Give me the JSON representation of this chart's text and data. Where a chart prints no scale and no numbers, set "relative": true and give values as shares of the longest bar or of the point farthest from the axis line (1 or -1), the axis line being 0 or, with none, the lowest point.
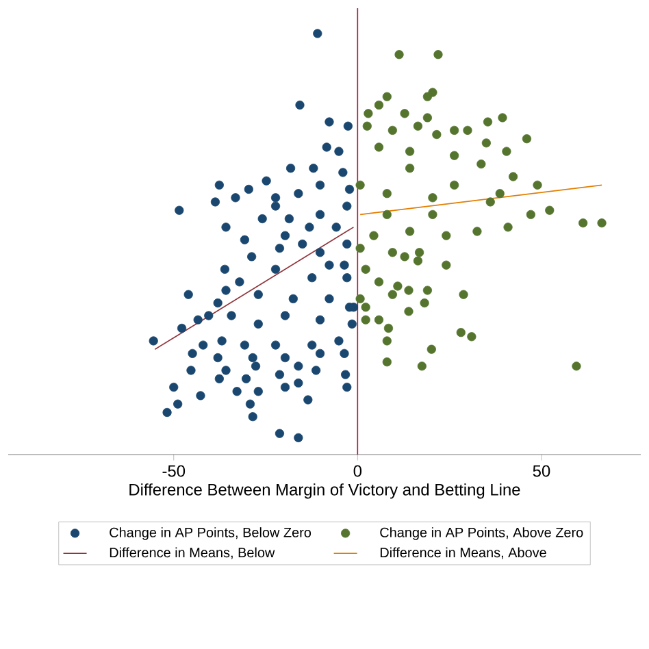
{
  "chart_data": {
    "type": "scatter",
    "xlabel": "Difference Between Margin of Victory and Betting Line",
    "xlim": [
      -95,
      77
    ],
    "xticks": [
      -50,
      0,
      50
    ],
    "relative": true,
    "legend": "bottom",
    "ref_lines": [
      {
        "axis": "x",
        "value": 0,
        "color": "#a8183d"
      }
    ],
    "series": [
      {
        "name": "Change in AP Points, Below Zero",
        "marker": "circle",
        "color": "#1a476f",
        "x": [
          -10.9,
          -15.7,
          -7.7,
          -2.6,
          -8.4,
          -5.1,
          -18.2,
          -12.0,
          -37.6,
          -48.5,
          -38.7,
          -24.8,
          -35.8,
          -30.7,
          -22.3,
          -16.1,
          -10.2,
          -4.0,
          -2.9,
          -10.2,
          -19.7,
          -28.8,
          -21.2,
          -10.2,
          -2.9,
          -36.1,
          -22.3,
          -12.4,
          -2.9,
          -32.1,
          -46.0,
          -35.8,
          -27.0,
          -17.5,
          -7.7,
          -38.0,
          -40.5,
          -43.4,
          -47.8,
          -55.5,
          -34.3,
          -27.0,
          -19.7,
          -10.2,
          -1.5,
          -36.9,
          -30.7,
          -22.3,
          -12.4,
          -5.1,
          -44.9,
          -42.0,
          -38.0,
          -28.5,
          -19.7,
          -10.2,
          -3.6,
          -45.3,
          -35.8,
          -27.7,
          -21.2,
          -16.1,
          -11.3,
          -50.0,
          -37.6,
          -30.3,
          -19.7,
          -16.1,
          -3.3,
          -2.9,
          -42.7,
          -48.9,
          -32.8,
          -27.0,
          -29.2,
          -13.5,
          -51.8,
          -28.5,
          -21.2,
          -16.1,
          -2.2,
          -5.8,
          -2.2,
          -7.7,
          -15.0,
          -25.9,
          -33.2,
          -29.6,
          -22.3,
          -1.1,
          -3.6,
          -13.1,
          -18.6
        ],
        "values": [
          1.0,
          0.83,
          0.79,
          0.78,
          0.73,
          0.72,
          0.68,
          0.68,
          0.64,
          0.58,
          0.6,
          0.65,
          0.54,
          0.51,
          0.59,
          0.62,
          0.64,
          0.67,
          0.59,
          0.57,
          0.52,
          0.47,
          0.49,
          0.48,
          0.5,
          0.44,
          0.44,
          0.42,
          0.42,
          0.41,
          0.38,
          0.39,
          0.38,
          0.37,
          0.37,
          0.36,
          0.33,
          0.32,
          0.3,
          0.27,
          0.33,
          0.31,
          0.33,
          0.32,
          0.31,
          0.27,
          0.26,
          0.26,
          0.26,
          0.27,
          0.24,
          0.26,
          0.23,
          0.23,
          0.23,
          0.24,
          0.24,
          0.2,
          0.2,
          0.21,
          0.19,
          0.21,
          0.2,
          0.16,
          0.18,
          0.18,
          0.16,
          0.17,
          0.19,
          0.16,
          0.14,
          0.12,
          0.15,
          0.15,
          0.12,
          0.13,
          0.1,
          0.09,
          0.05,
          0.04,
          0.63,
          0.54,
          0.35,
          0.45,
          0.5,
          0.56,
          0.61,
          0.63,
          0.61,
          0.35,
          0.45,
          0.54,
          0.56
        ]
      },
      {
        "name": "Change in AP Points, Above Zero",
        "marker": "circle",
        "color": "#55752f",
        "x": [
          11.3,
          21.9,
          20.4,
          19.0,
          8.0,
          5.8,
          2.9,
          12.8,
          19.0,
          16.4,
          2.6,
          39.4,
          35.4,
          26.3,
          29.9,
          46.0,
          40.5,
          35.0,
          21.5,
          9.5,
          5.8,
          14.2,
          26.3,
          33.6,
          42.3,
          48.9,
          52.2,
          61.3,
          66.4,
          47.1,
          40.9,
          32.5,
          24.1,
          14.2,
          4.4,
          0.7,
          8.0,
          20.4,
          36.1,
          0.7,
          9.5,
          16.8,
          12.8,
          16.4,
          24.1,
          2.2,
          5.8,
          10.9,
          13.9,
          19.0,
          28.8,
          9.5,
          18.2,
          2.2,
          13.9,
          5.8,
          2.2,
          8.4,
          28.1,
          31.0,
          8.0,
          20.1,
          8.0,
          17.5,
          59.5,
          0.7,
          14.2,
          26.3,
          38.7,
          20.4,
          8.0
        ],
        "values": [
          0.95,
          0.95,
          0.86,
          0.85,
          0.85,
          0.83,
          0.81,
          0.81,
          0.8,
          0.78,
          0.78,
          0.8,
          0.79,
          0.77,
          0.77,
          0.75,
          0.72,
          0.74,
          0.76,
          0.77,
          0.73,
          0.72,
          0.71,
          0.69,
          0.66,
          0.64,
          0.58,
          0.55,
          0.55,
          0.57,
          0.54,
          0.53,
          0.52,
          0.53,
          0.52,
          0.64,
          0.62,
          0.61,
          0.6,
          0.49,
          0.48,
          0.48,
          0.47,
          0.46,
          0.45,
          0.44,
          0.41,
          0.4,
          0.39,
          0.39,
          0.38,
          0.38,
          0.36,
          0.35,
          0.34,
          0.32,
          0.32,
          0.3,
          0.29,
          0.28,
          0.27,
          0.25,
          0.22,
          0.21,
          0.21,
          0.37,
          0.68,
          0.64,
          0.62,
          0.57,
          0.57
        ]
      },
      {
        "name": "Difference in Means, Below",
        "type": "line",
        "marker": "none",
        "color": "#90353b",
        "x": [
          -55.1,
          -1.1
        ],
        "values": [
          0.25,
          0.54
        ]
      },
      {
        "name": "Difference in Means, Above",
        "type": "line",
        "marker": "none",
        "color": "#e37e00",
        "x": [
          0.7,
          66.4
        ],
        "values": [
          0.57,
          0.64
        ]
      }
    ]
  }
}
